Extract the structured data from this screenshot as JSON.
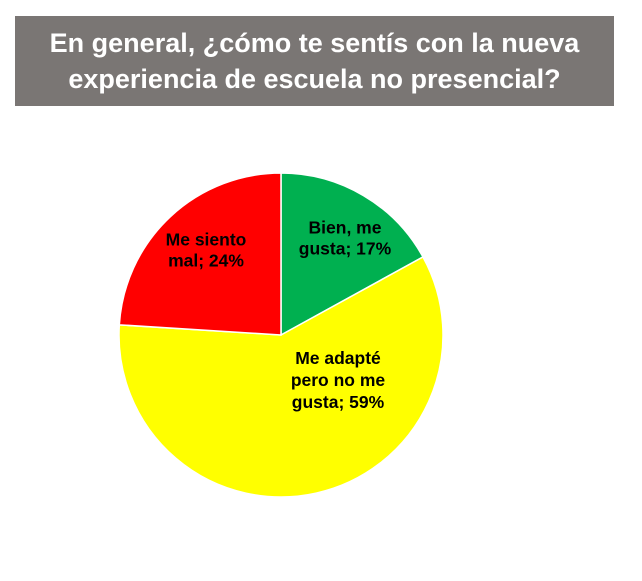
{
  "chart_data": {
    "type": "pie",
    "title": "En general, ¿cómo te sentís con la nueva experiencia de escuela no presencial?",
    "title_lines": [
      "En general, ¿cómo te sentís con la nueva",
      "experiencia de escuela no presencial?"
    ],
    "categories": [
      "Bien, me gusta",
      "Me adapté pero no me gusta",
      "Me siento mal"
    ],
    "values": [
      17,
      59,
      24
    ],
    "colors": [
      "#00b050",
      "#ffff00",
      "#ff0000"
    ],
    "data_labels": [
      [
        "Bien, me",
        "gusta; 17%"
      ],
      [
        "Me adapté",
        "pero no me",
        "gusta; 59%"
      ],
      [
        "Me siento",
        "mal; 24%"
      ]
    ],
    "start_angle_deg": 0,
    "direction": "clockwise",
    "legend": "none"
  },
  "colors": {
    "title_background": "#7a7674",
    "title_text": "#ffffff",
    "slice_border": "#ffffff"
  }
}
